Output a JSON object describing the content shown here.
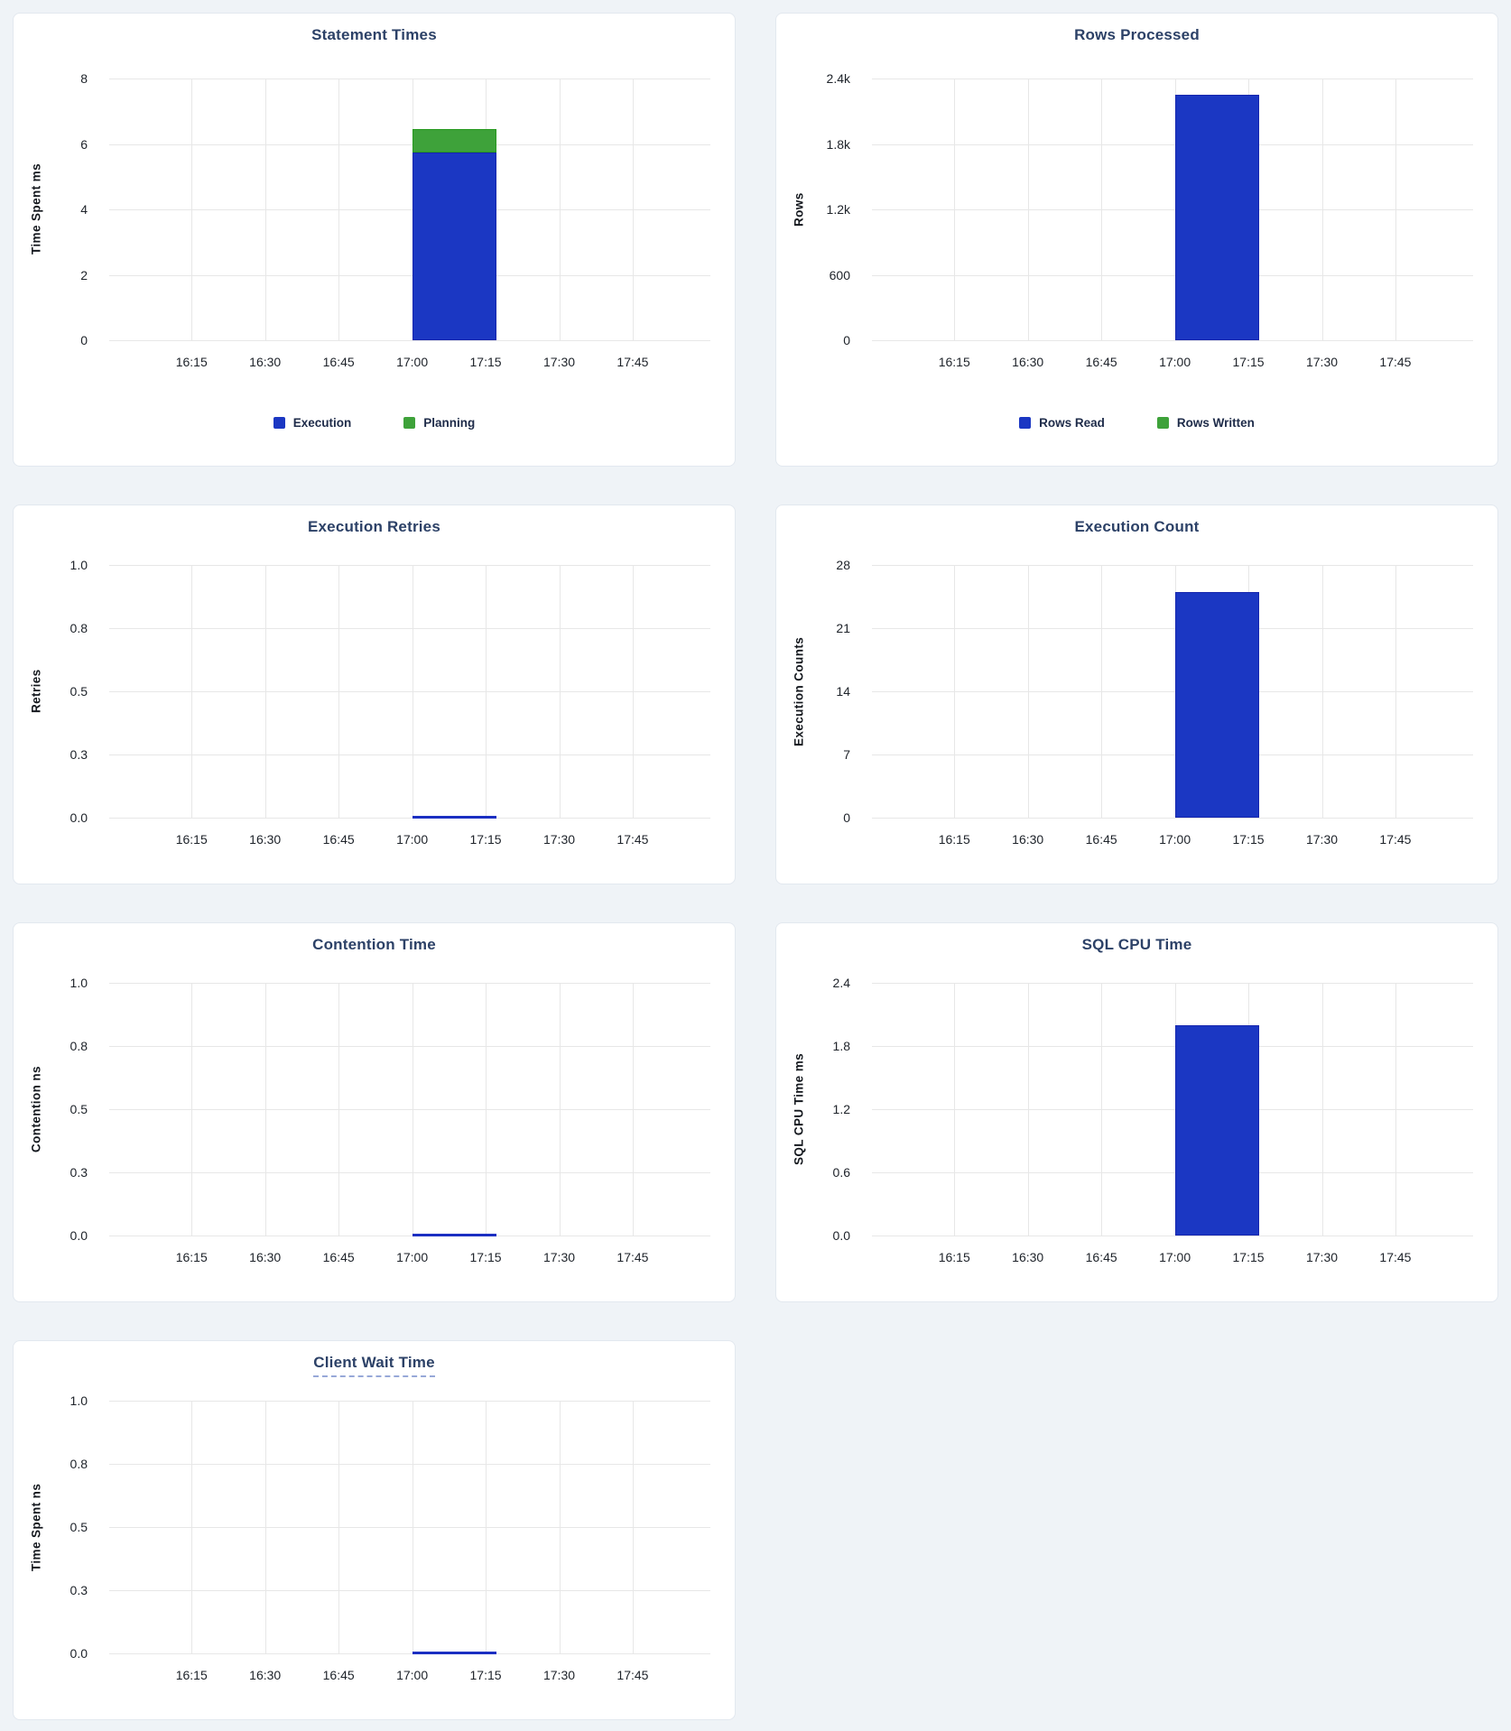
{
  "colors": {
    "series_blue": "#1B37C3",
    "series_blue_border": "#1626AE",
    "series_green": "#3EA23A",
    "series_green_border": "#27991F",
    "zero_line_blue": "#1B2FC2",
    "title_text": "#2C4167",
    "tick_text": "#1D2229",
    "axis_label_text": "#14181E",
    "legend_text": "#1E2B49",
    "grid_line": "#E7E7E7",
    "page_background": "#EFF3F7",
    "card_background": "#FFFFFF",
    "card_border": "#E2E8EF",
    "tooltip_underline": "#97A8D8"
  },
  "axis_geometry": {
    "first_tick_frac": 0.137,
    "tick_spacing_frac": 0.1223,
    "bar_left_frac": 0.5039,
    "bar_width_frac": 0.14
  },
  "chart_data": [
    {
      "type": "bar",
      "title": "Statement Times",
      "title_tooltip": false,
      "ylabel": "Time Spent ms",
      "ylim": [
        0,
        8
      ],
      "y_ticks": [
        "8",
        "6",
        "4",
        "2",
        "0"
      ],
      "x_ticks": [
        "16:15",
        "16:30",
        "16:45",
        "17:00",
        "17:15",
        "17:30",
        "17:45"
      ],
      "stacked": true,
      "legend_visible": true,
      "series": [
        {
          "label": "Execution",
          "color": "blue",
          "x": "17:00",
          "y": 5.75
        },
        {
          "label": "Planning",
          "color": "green",
          "x": "17:00",
          "y": 0.7
        }
      ]
    },
    {
      "type": "bar",
      "title": "Rows Processed",
      "title_tooltip": false,
      "ylabel": "Rows",
      "ylim": [
        0,
        2400
      ],
      "y_ticks": [
        "2.4k",
        "1.8k",
        "1.2k",
        "600",
        "0"
      ],
      "x_ticks": [
        "16:15",
        "16:30",
        "16:45",
        "17:00",
        "17:15",
        "17:30",
        "17:45"
      ],
      "stacked": true,
      "legend_visible": true,
      "series": [
        {
          "label": "Rows Read",
          "color": "blue",
          "x": "17:00",
          "y": 2250
        },
        {
          "label": "Rows Written",
          "color": "green",
          "x": "17:00",
          "y": 0
        }
      ]
    },
    {
      "type": "bar",
      "title": "Execution Retries",
      "title_tooltip": false,
      "ylabel": "Retries",
      "ylim": [
        0,
        1
      ],
      "y_ticks": [
        "1.0",
        "0.8",
        "0.5",
        "0.3",
        "0.0"
      ],
      "x_ticks": [
        "16:15",
        "16:30",
        "16:45",
        "17:00",
        "17:15",
        "17:30",
        "17:45"
      ],
      "stacked": false,
      "legend_visible": false,
      "series": [
        {
          "color": "blue",
          "x": "17:00",
          "y": 0
        }
      ]
    },
    {
      "type": "bar",
      "title": "Execution Count",
      "title_tooltip": false,
      "ylabel": "Execution Counts",
      "ylim": [
        0,
        28
      ],
      "y_ticks": [
        "28",
        "21",
        "14",
        "7",
        "0"
      ],
      "x_ticks": [
        "16:15",
        "16:30",
        "16:45",
        "17:00",
        "17:15",
        "17:30",
        "17:45"
      ],
      "stacked": false,
      "legend_visible": false,
      "series": [
        {
          "color": "blue",
          "x": "17:00",
          "y": 25
        }
      ]
    },
    {
      "type": "bar",
      "title": "Contention Time",
      "title_tooltip": false,
      "ylabel": "Contention ns",
      "ylim": [
        0,
        1
      ],
      "y_ticks": [
        "1.0",
        "0.8",
        "0.5",
        "0.3",
        "0.0"
      ],
      "x_ticks": [
        "16:15",
        "16:30",
        "16:45",
        "17:00",
        "17:15",
        "17:30",
        "17:45"
      ],
      "stacked": false,
      "legend_visible": false,
      "series": [
        {
          "color": "blue",
          "x": "17:00",
          "y": 0
        }
      ]
    },
    {
      "type": "bar",
      "title": "SQL CPU Time",
      "title_tooltip": false,
      "ylabel": "SQL CPU Time ms",
      "ylim": [
        0,
        2.4
      ],
      "y_ticks": [
        "2.4",
        "1.8",
        "1.2",
        "0.6",
        "0.0"
      ],
      "x_ticks": [
        "16:15",
        "16:30",
        "16:45",
        "17:00",
        "17:15",
        "17:30",
        "17:45"
      ],
      "stacked": false,
      "legend_visible": false,
      "series": [
        {
          "color": "blue",
          "x": "17:00",
          "y": 2.0
        }
      ]
    },
    {
      "type": "bar",
      "title": "Client Wait Time",
      "title_tooltip": true,
      "ylabel": "Time Spent ns",
      "ylim": [
        0,
        1
      ],
      "y_ticks": [
        "1.0",
        "0.8",
        "0.5",
        "0.3",
        "0.0"
      ],
      "x_ticks": [
        "16:15",
        "16:30",
        "16:45",
        "17:00",
        "17:15",
        "17:30",
        "17:45"
      ],
      "stacked": false,
      "legend_visible": false,
      "series": [
        {
          "color": "blue",
          "x": "17:00",
          "y": 0
        }
      ]
    }
  ]
}
